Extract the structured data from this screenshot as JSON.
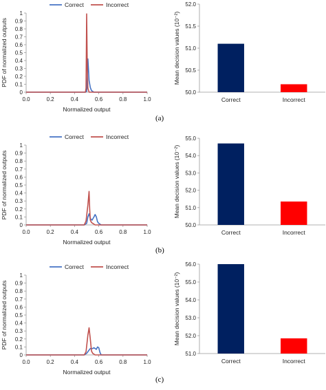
{
  "chart_data": [
    {
      "panel": "a",
      "type": "line",
      "xlabel": "Normalized output",
      "ylabel": "PDF of normalized outputs",
      "xlim": [
        0,
        1
      ],
      "ylim": [
        0,
        1
      ],
      "xticks": [
        "0.0",
        "0.2",
        "0.4",
        "0.6",
        "0.8",
        "1.0"
      ],
      "yticks": [
        "0",
        "0.1",
        "0.2",
        "0.3",
        "0.4",
        "0.5",
        "0.6",
        "0.7",
        "0.8",
        "0.9",
        "1"
      ],
      "legend_position": "top",
      "series": [
        {
          "name": "Correct",
          "color": "#4472C4",
          "points": [
            [
              0,
              0
            ],
            [
              0.49,
              0
            ],
            [
              0.5,
              0.01
            ],
            [
              0.505,
              0.15
            ],
            [
              0.51,
              0.42
            ],
            [
              0.515,
              0.3
            ],
            [
              0.52,
              0.15
            ],
            [
              0.53,
              0.06
            ],
            [
              0.54,
              0.02
            ],
            [
              0.56,
              0
            ],
            [
              1,
              0
            ]
          ]
        },
        {
          "name": "Incorrect",
          "color": "#C0504D",
          "points": [
            [
              0,
              0
            ],
            [
              0.49,
              0
            ],
            [
              0.495,
              0.05
            ],
            [
              0.5,
              0.99
            ],
            [
              0.505,
              0.3
            ],
            [
              0.51,
              0.05
            ],
            [
              0.52,
              0
            ],
            [
              1,
              0
            ]
          ]
        }
      ]
    },
    {
      "panel": "a",
      "type": "bar",
      "ylabel": "Mean decision values (10⁻²)",
      "categories": [
        "Correct",
        "Incorrect"
      ],
      "values": [
        51.1,
        50.18
      ],
      "colors": [
        "#002060",
        "#FF0000"
      ],
      "ylim": [
        50.0,
        52.0
      ],
      "yticks": [
        "50.0",
        "50.5",
        "51.0",
        "51.5",
        "52.0"
      ]
    },
    {
      "panel": "b",
      "type": "line",
      "xlabel": "Normalized output",
      "ylabel": "PDF of normalized outputs",
      "xlim": [
        0,
        1
      ],
      "ylim": [
        0,
        1
      ],
      "xticks": [
        "0.0",
        "0.2",
        "0.4",
        "0.6",
        "0.8",
        "1.0"
      ],
      "yticks": [
        "0",
        "0.1",
        "0.2",
        "0.3",
        "0.4",
        "0.5",
        "0.6",
        "0.7",
        "0.8",
        "0.9",
        "1"
      ],
      "legend_position": "top",
      "series": [
        {
          "name": "Correct",
          "color": "#4472C4",
          "points": [
            [
              0,
              0
            ],
            [
              0.48,
              0
            ],
            [
              0.5,
              0.02
            ],
            [
              0.51,
              0.1
            ],
            [
              0.52,
              0.14
            ],
            [
              0.53,
              0.08
            ],
            [
              0.545,
              0.06
            ],
            [
              0.56,
              0.1
            ],
            [
              0.57,
              0.13
            ],
            [
              0.58,
              0.1
            ],
            [
              0.59,
              0.04
            ],
            [
              0.6,
              0.02
            ],
            [
              0.62,
              0
            ],
            [
              1,
              0
            ]
          ]
        },
        {
          "name": "Incorrect",
          "color": "#C0504D",
          "points": [
            [
              0,
              0
            ],
            [
              0.48,
              0
            ],
            [
              0.495,
              0.05
            ],
            [
              0.51,
              0.25
            ],
            [
              0.52,
              0.42
            ],
            [
              0.525,
              0.2
            ],
            [
              0.53,
              0.06
            ],
            [
              0.54,
              0.03
            ],
            [
              0.55,
              0.02
            ],
            [
              0.57,
              0
            ],
            [
              1,
              0
            ]
          ]
        }
      ]
    },
    {
      "panel": "b",
      "type": "bar",
      "ylabel": "Mean decision values (10⁻²)",
      "categories": [
        "Correct",
        "Incorrect"
      ],
      "values": [
        54.7,
        51.35
      ],
      "colors": [
        "#002060",
        "#FF0000"
      ],
      "ylim": [
        50.0,
        55.0
      ],
      "yticks": [
        "50.0",
        "51.0",
        "52.0",
        "53.0",
        "54.0",
        "55.0"
      ]
    },
    {
      "panel": "c",
      "type": "line",
      "xlabel": "Normalized output",
      "ylabel": "PDF of normalized outputs",
      "xlim": [
        0,
        1
      ],
      "ylim": [
        0,
        1
      ],
      "xticks": [
        "0.0",
        "0.2",
        "0.4",
        "0.6",
        "0.8",
        "1.0"
      ],
      "yticks": [
        "0",
        "0.1",
        "0.2",
        "0.3",
        "0.4",
        "0.5",
        "0.6",
        "0.7",
        "0.8",
        "0.9",
        "1"
      ],
      "legend_position": "top",
      "series": [
        {
          "name": "Correct",
          "color": "#4472C4",
          "points": [
            [
              0,
              0
            ],
            [
              0.48,
              0
            ],
            [
              0.5,
              0.02
            ],
            [
              0.52,
              0.06
            ],
            [
              0.53,
              0.08
            ],
            [
              0.55,
              0.08
            ],
            [
              0.56,
              0.09
            ],
            [
              0.57,
              0.08
            ],
            [
              0.58,
              0.07
            ],
            [
              0.59,
              0.1
            ],
            [
              0.6,
              0.09
            ],
            [
              0.61,
              0.03
            ],
            [
              0.62,
              0
            ],
            [
              1,
              0
            ]
          ]
        },
        {
          "name": "Incorrect",
          "color": "#C0504D",
          "points": [
            [
              0,
              0
            ],
            [
              0.48,
              0
            ],
            [
              0.495,
              0.04
            ],
            [
              0.51,
              0.25
            ],
            [
              0.52,
              0.34
            ],
            [
              0.53,
              0.2
            ],
            [
              0.54,
              0.05
            ],
            [
              0.55,
              0.02
            ],
            [
              0.57,
              0
            ],
            [
              1,
              0
            ]
          ]
        }
      ]
    },
    {
      "panel": "c",
      "type": "bar",
      "ylabel": "Mean decision values (10⁻²)",
      "categories": [
        "Correct",
        "Incorrect"
      ],
      "values": [
        56.0,
        51.85
      ],
      "colors": [
        "#002060",
        "#FF0000"
      ],
      "ylim": [
        51.0,
        56.0
      ],
      "yticks": [
        "51.0",
        "52.0",
        "53.0",
        "54.0",
        "55.0",
        "56.0"
      ]
    }
  ],
  "panel_labels": [
    "(a)",
    "(b)",
    "(c)"
  ]
}
